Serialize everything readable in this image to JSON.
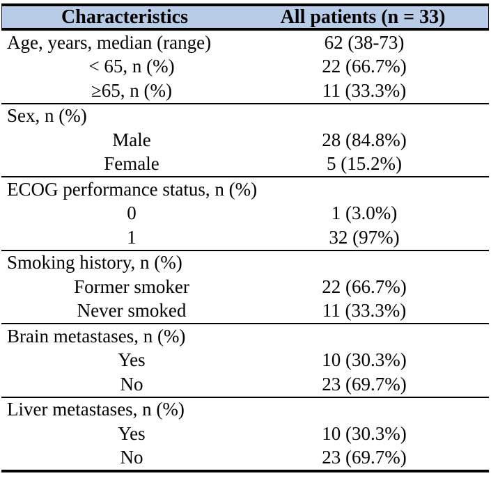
{
  "table": {
    "colors": {
      "header_background": "#b8cbe7",
      "border": "#000000"
    },
    "header": {
      "col1": "Characteristics",
      "col2": "All patients (n = 33)"
    },
    "sections": [
      {
        "rows": [
          {
            "label": "Age, years, median (range)",
            "value": "62 (38-73)"
          },
          {
            "label": "< 65, n (%)",
            "value": "22 (66.7%)"
          },
          {
            "label": "≥65, n (%)",
            "value": "11 (33.3%)"
          }
        ]
      },
      {
        "rows": [
          {
            "label": "Sex, n (%)",
            "value": ""
          },
          {
            "label": "Male",
            "value": "28 (84.8%)"
          },
          {
            "label": "Female",
            "value": "5 (15.2%)"
          }
        ]
      },
      {
        "rows": [
          {
            "label": "ECOG performance status, n (%)",
            "value": ""
          },
          {
            "label": "0",
            "value": "1 (3.0%)"
          },
          {
            "label": "1",
            "value": "32 (97%)"
          }
        ]
      },
      {
        "rows": [
          {
            "label": "Smoking history, n (%)",
            "value": ""
          },
          {
            "label": "Former smoker",
            "value": "22 (66.7%)"
          },
          {
            "label": "Never smoked",
            "value": "11 (33.3%)"
          }
        ]
      },
      {
        "rows": [
          {
            "label": "Brain metastases, n (%)",
            "value": ""
          },
          {
            "label": "Yes",
            "value": "10 (30.3%)"
          },
          {
            "label": "No",
            "value": "23 (69.7%)"
          }
        ]
      },
      {
        "rows": [
          {
            "label": "Liver metastases, n (%)",
            "value": ""
          },
          {
            "label": "Yes",
            "value": "10 (30.3%)"
          },
          {
            "label": "No",
            "value": "23 (69.7%)"
          }
        ]
      }
    ]
  }
}
